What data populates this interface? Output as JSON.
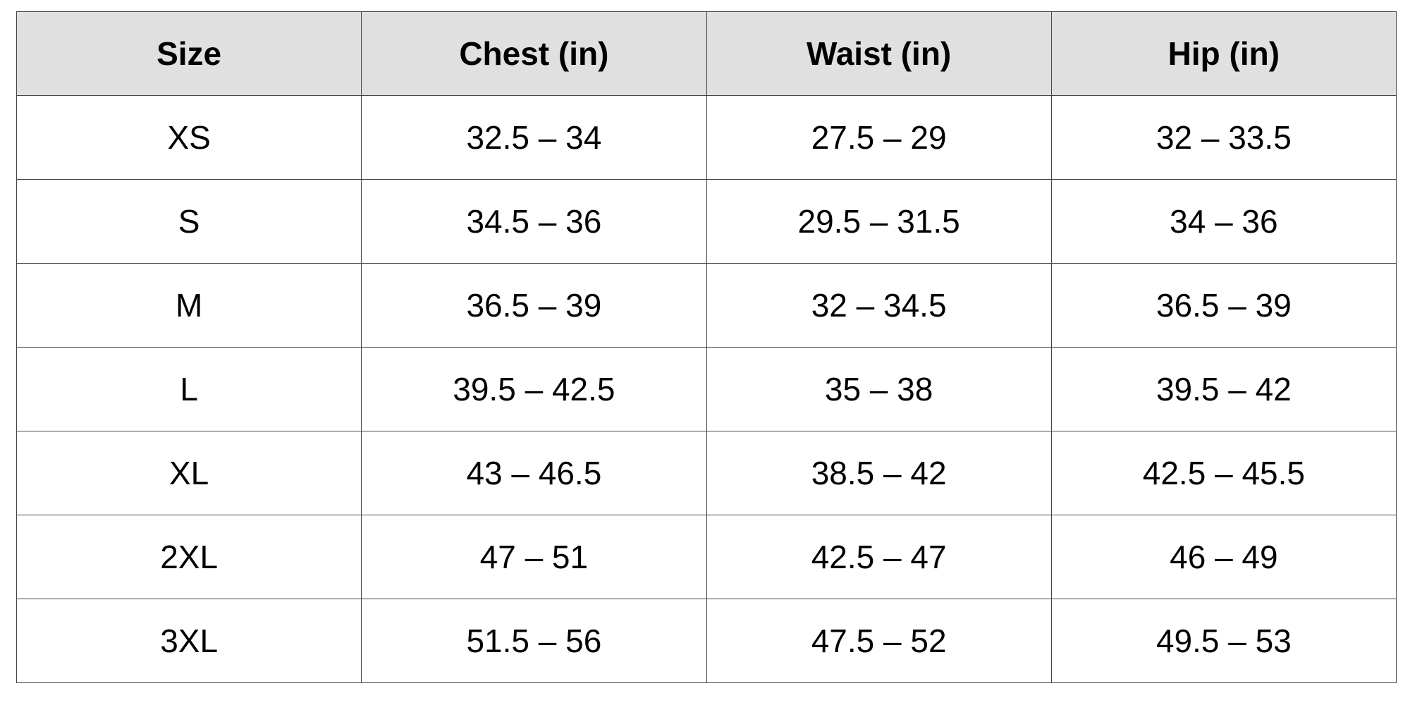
{
  "table": {
    "headers": [
      "Size",
      "Chest (in)",
      "Waist (in)",
      "Hip (in)"
    ],
    "rows": [
      [
        "XS",
        "32.5 – 34",
        "27.5 – 29",
        "32 – 33.5"
      ],
      [
        "S",
        "34.5 – 36",
        "29.5 – 31.5",
        "34 – 36"
      ],
      [
        "M",
        "36.5 – 39",
        "32 – 34.5",
        "36.5 – 39"
      ],
      [
        "L",
        "39.5 – 42.5",
        "35 – 38",
        "39.5 – 42"
      ],
      [
        "XL",
        "43 – 46.5",
        "38.5 – 42",
        "42.5 – 45.5"
      ],
      [
        "2XL",
        "47 – 51",
        "42.5 – 47",
        "46 – 49"
      ],
      [
        "3XL",
        "51.5 – 56",
        "47.5 – 52",
        "49.5 – 53"
      ]
    ],
    "header_background": "#e0e0e0",
    "border_color": "#444444"
  }
}
